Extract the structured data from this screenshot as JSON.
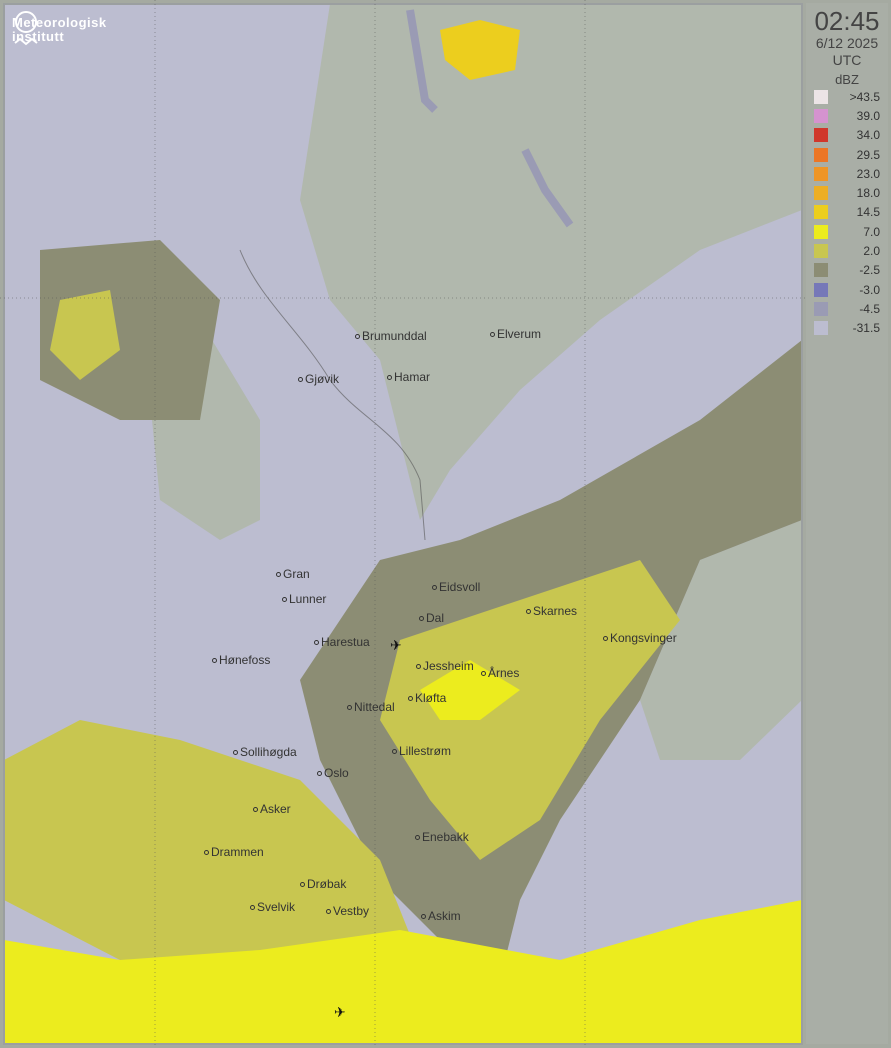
{
  "logo": {
    "line1": "Meteorologisk",
    "line2": "institutt"
  },
  "panel": {
    "time": "02:45",
    "date": "6/12 2025",
    "timezone": "UTC",
    "unit": "dBZ"
  },
  "legend": [
    {
      "label": ">43.5",
      "color": "#ece4e6"
    },
    {
      "label": "39.0",
      "color": "#d593cf"
    },
    {
      "label": "34.0",
      "color": "#d0372b"
    },
    {
      "label": "29.5",
      "color": "#ec7626"
    },
    {
      "label": "23.0",
      "color": "#ef9526"
    },
    {
      "label": "18.0",
      "color": "#edae24"
    },
    {
      "label": "14.5",
      "color": "#ecce1e"
    },
    {
      "label": "7.0",
      "color": "#ecec1e"
    },
    {
      "label": "2.0",
      "color": "#c8c650"
    },
    {
      "label": "-2.5",
      "color": "#8c8d74"
    },
    {
      "label": "-3.0",
      "color": "#7678b8"
    },
    {
      "label": "-4.5",
      "color": "#9a9bb4"
    },
    {
      "label": "-31.5",
      "color": "#bcbdd0"
    }
  ],
  "cities": [
    "Brumunddal",
    "Elverum",
    "Hamar",
    "Gjøvik",
    "Gran",
    "Lunner",
    "Eidsvoll",
    "Dal",
    "Skarnes",
    "Kongsvinger",
    "Harestua",
    "Hønefoss",
    "Jessheim",
    "Årnes",
    "Kløfta",
    "Nittedal",
    "Sollihøgda",
    "Lillestrøm",
    "Oslo",
    "Asker",
    "Enebakk",
    "Drammen",
    "Drøbak",
    "Svelvik",
    "Vestby",
    "Askim"
  ],
  "icons": {
    "airport": "airplane-icon",
    "logo": "met-logo-icon"
  }
}
